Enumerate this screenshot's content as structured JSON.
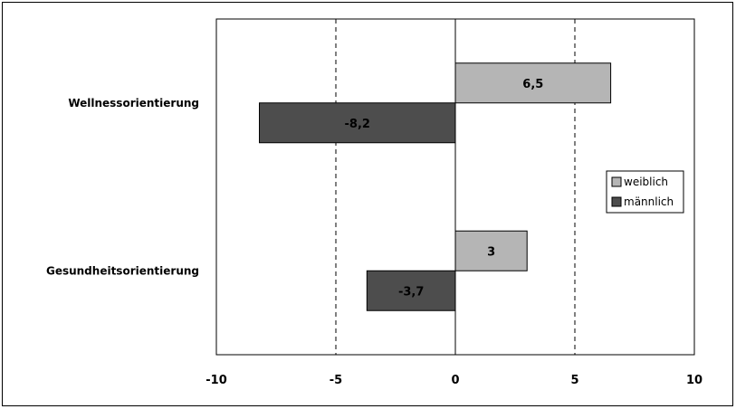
{
  "chart_data": {
    "type": "bar",
    "orientation": "horizontal",
    "categories": [
      "Wellnessorientierung",
      "Gesundheitsorientierung"
    ],
    "series": [
      {
        "name": "weiblich",
        "values": [
          6.5,
          3
        ],
        "labels": [
          "6,5",
          "3"
        ],
        "color": "#b5b5b5"
      },
      {
        "name": "männlich",
        "values": [
          -8.2,
          -3.7
        ],
        "labels": [
          "-8,2",
          "-3,7"
        ],
        "color": "#4d4d4d"
      }
    ],
    "xlim": [
      -10,
      10
    ],
    "xticks": [
      -10,
      -5,
      0,
      5,
      10
    ],
    "xtick_labels": [
      "-10",
      "-5",
      "0",
      "5",
      "10"
    ],
    "grid": "vertical dashed",
    "legend_position": "right",
    "title": "",
    "xlabel": "",
    "ylabel": ""
  }
}
